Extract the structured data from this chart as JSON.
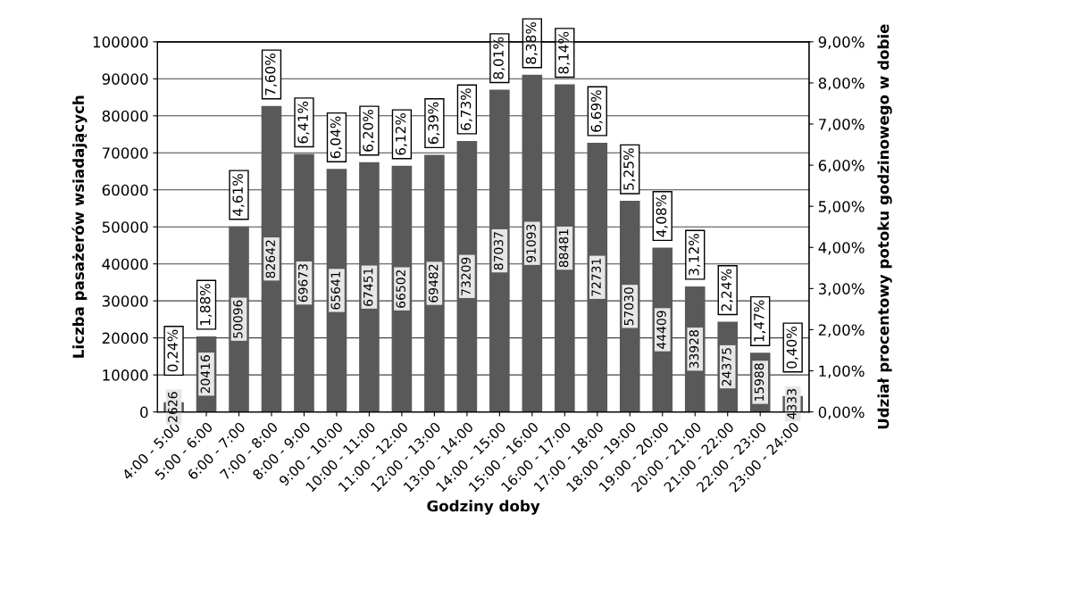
{
  "chart_data": {
    "type": "bar",
    "xlabel": "Godziny doby",
    "ylabel": "Liczba pasażerów wsiadających",
    "y2label": "Udział procentowy potoku godzinowego w dobie",
    "categories": [
      "4:00 - 5:00",
      "5:00 - 6:00",
      "6:00 - 7:00",
      "7:00 - 8:00",
      "8:00 - 9:00",
      "9:00 - 10:00",
      "10:00 - 11:00",
      "11:00 - 12:00",
      "12:00 - 13:00",
      "13:00 - 14:00",
      "14:00 - 15:00",
      "15:00 - 16:00",
      "16:00 - 17:00",
      "17:00 - 18:00",
      "18:00 - 19:00",
      "19:00 - 20:00",
      "20:00 - 21:00",
      "21:00 - 22:00",
      "22:00 - 23:00",
      "23:00 - 24:00"
    ],
    "series": [
      {
        "color": "#595959",
        "values": [
          2626,
          20416,
          50096,
          82642,
          69673,
          65641,
          67451,
          66502,
          69482,
          73209,
          87037,
          91093,
          88481,
          72731,
          57030,
          44409,
          33928,
          24375,
          15988,
          4333
        ]
      }
    ],
    "data_labels": true,
    "ylim": [
      0,
      100000
    ],
    "yticks": [
      0,
      10000,
      20000,
      30000,
      40000,
      50000,
      60000,
      70000,
      80000,
      90000,
      100000
    ],
    "y2lim": [
      0,
      9
    ],
    "y2ticks": [
      {
        "value": 0,
        "label": "0,00%"
      },
      {
        "value": 1,
        "label": "1,00%"
      },
      {
        "value": 2,
        "label": "2,00%"
      },
      {
        "value": 3,
        "label": "3,00%"
      },
      {
        "value": 4,
        "label": "4,00%"
      },
      {
        "value": 5,
        "label": "5,00%"
      },
      {
        "value": 6,
        "label": "6,00%"
      },
      {
        "value": 7,
        "label": "7,00%"
      },
      {
        "value": 8,
        "label": "8,00%"
      },
      {
        "value": 9,
        "label": "9,00%"
      }
    ],
    "grid": "y",
    "annotations": [
      {
        "text": "0,24%",
        "x": "4:00 - 5:00",
        "y": 2626
      },
      {
        "text": "1,88%",
        "x": "5:00 - 6:00",
        "y": 20416
      },
      {
        "text": "4,61%",
        "x": "6:00 - 7:00",
        "y": 50096
      },
      {
        "text": "7,60%",
        "x": "7:00 - 8:00",
        "y": 82642
      },
      {
        "text": "6,41%",
        "x": "8:00 - 9:00",
        "y": 69673
      },
      {
        "text": "6,04%",
        "x": "9:00 - 10:00",
        "y": 65641
      },
      {
        "text": "6,20%",
        "x": "10:00 - 11:00",
        "y": 67451
      },
      {
        "text": "6,12%",
        "x": "11:00 - 12:00",
        "y": 66502
      },
      {
        "text": "6,39%",
        "x": "12:00 - 13:00",
        "y": 69482
      },
      {
        "text": "6,73%",
        "x": "13:00 - 14:00",
        "y": 73209
      },
      {
        "text": "8,01%",
        "x": "14:00 - 15:00",
        "y": 87037
      },
      {
        "text": "8,38%",
        "x": "15:00 - 16:00",
        "y": 91093
      },
      {
        "text": "8,14%",
        "x": "16:00 - 17:00",
        "y": 88481
      },
      {
        "text": "6,69%",
        "x": "17:00 - 18:00",
        "y": 72731
      },
      {
        "text": "5,25%",
        "x": "18:00 - 19:00",
        "y": 57030
      },
      {
        "text": "4,08%",
        "x": "19:00 - 20:00",
        "y": 44409
      },
      {
        "text": "3,12%",
        "x": "20:00 - 21:00",
        "y": 33928
      },
      {
        "text": "2,24%",
        "x": "21:00 - 22:00",
        "y": 24375
      },
      {
        "text": "1,47%",
        "x": "22:00 - 23:00",
        "y": 15988
      },
      {
        "text": "0,40%",
        "x": "23:00 - 24:00",
        "y": 4333
      }
    ]
  }
}
